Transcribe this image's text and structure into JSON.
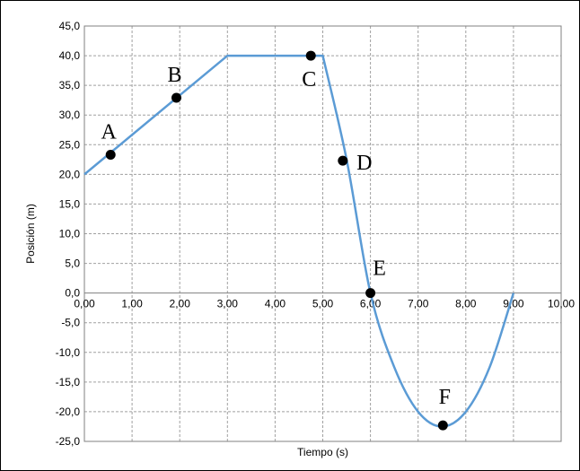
{
  "chart_data": {
    "type": "line",
    "title": "",
    "xlabel": "Tiempo (s)",
    "ylabel": "Posición (m)",
    "xlim": [
      0,
      10
    ],
    "ylim": [
      -25,
      45
    ],
    "x_ticks": [
      "0,00",
      "1,00",
      "2,00",
      "3,00",
      "4,00",
      "5,00",
      "6,00",
      "7,00",
      "8,00",
      "9,00",
      "10,00"
    ],
    "y_ticks": [
      "45,0",
      "40,0",
      "35,0",
      "30,0",
      "25,0",
      "20,0",
      "15,0",
      "10,0",
      "5,0",
      "0,0",
      "-5,0",
      "-10,0",
      "-15,0",
      "-20,0",
      "-25,0"
    ],
    "grid": true,
    "line_color": "#5B9BD5",
    "series": [
      {
        "x": [
          0,
          3,
          5,
          5.5,
          6,
          6.5,
          7,
          7.5,
          8,
          8.5,
          9
        ],
        "y": [
          20,
          40,
          40,
          22.5,
          0,
          -12.5,
          -20,
          -22.5,
          -20,
          -12.5,
          0
        ]
      }
    ],
    "points": [
      {
        "label": "A",
        "x": 0.55,
        "y": 23.3
      },
      {
        "label": "B",
        "x": 1.93,
        "y": 32.9
      },
      {
        "label": "C",
        "x": 4.75,
        "y": 40.0
      },
      {
        "label": "D",
        "x": 5.42,
        "y": 22.3
      },
      {
        "label": "E",
        "x": 6.0,
        "y": 0.0
      },
      {
        "label": "F",
        "x": 7.52,
        "y": -22.3
      }
    ]
  }
}
